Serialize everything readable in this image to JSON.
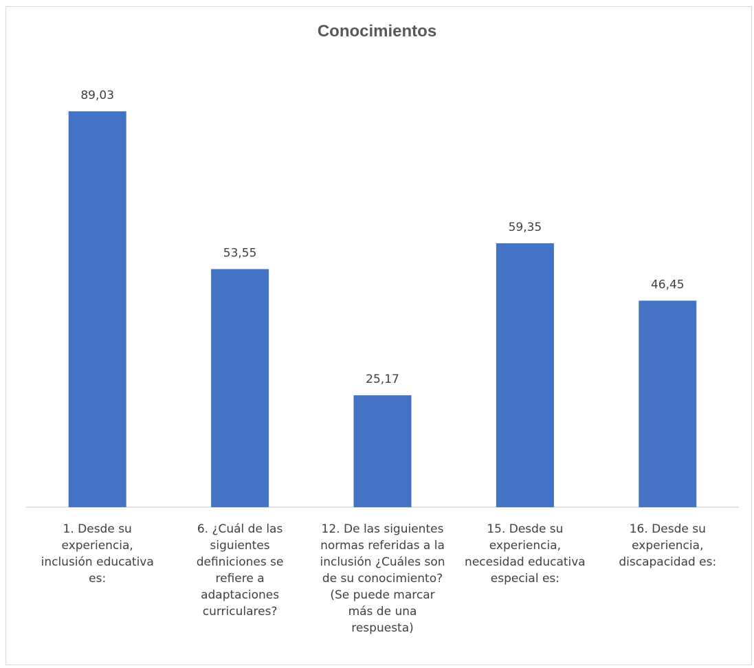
{
  "chart_data": {
    "type": "bar",
    "title": "Conocimientos",
    "categories": [
      "1. Desde su experiencia, inclusión educativa es:",
      "6. ¿Cuál de las siguientes definiciones se refiere a adaptaciones curriculares?",
      "12. De las siguientes normas referidas a la inclusión ¿Cuáles son de su conocimiento? (Se puede marcar más de una respuesta)",
      "15. Desde su experiencia, necesidad educativa especial es:",
      "16. Desde su experiencia, discapacidad es:"
    ],
    "category_lines": [
      [
        "1. Desde su",
        "experiencia,",
        "inclusión educativa",
        "es:"
      ],
      [
        "6. ¿Cuál de las",
        "siguientes",
        "definiciones se",
        "refiere a",
        "adaptaciones",
        "curriculares?"
      ],
      [
        "12. De las siguientes",
        "normas referidas a la",
        "inclusión ¿Cuáles son",
        "de su conocimiento?",
        "(Se puede marcar",
        "más de una",
        "respuesta)"
      ],
      [
        "15. Desde su",
        "experiencia,",
        "necesidad educativa",
        "especial es:"
      ],
      [
        "16. Desde su",
        "experiencia,",
        "discapacidad es:"
      ]
    ],
    "values": [
      89.03,
      53.55,
      25.17,
      59.35,
      46.45
    ],
    "data_labels": [
      "89,03",
      "53,55",
      "25,17",
      "59,35",
      "46,45"
    ],
    "ylim": [
      0,
      90
    ],
    "grid": false,
    "legend": "none",
    "bar_color": "#4472c4"
  }
}
